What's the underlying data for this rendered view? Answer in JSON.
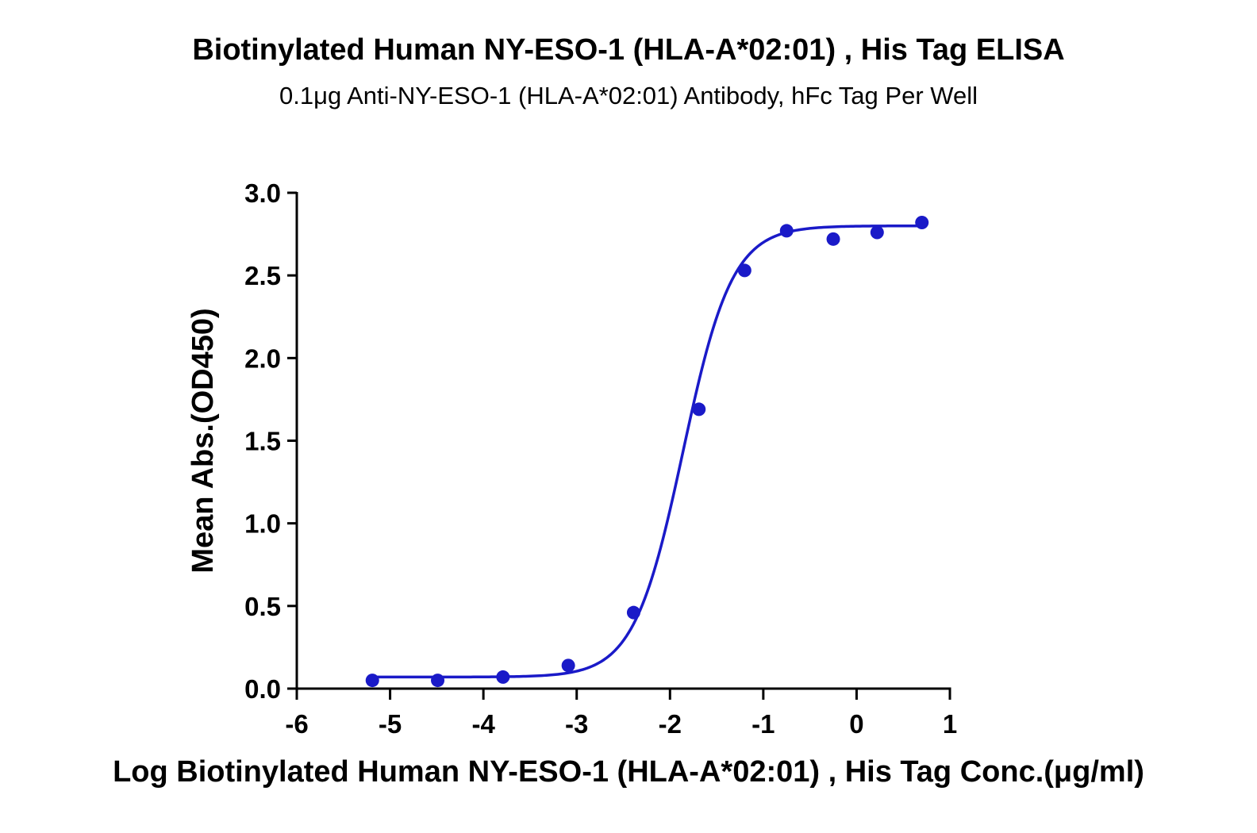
{
  "chart_data": {
    "type": "scatter",
    "title": "Biotinylated Human NY-ESO-1 (HLA-A*02:01) , His Tag ELISA",
    "subtitle": "0.1μg Anti-NY-ESO-1 (HLA-A*02:01) Antibody, hFc Tag Per Well",
    "xlabel": "Log Biotinylated Human NY-ESO-1 (HLA-A*02:01) , His Tag Conc.(μg/ml)",
    "ylabel": "Mean Abs.(OD450)",
    "xlim": [
      -6,
      1
    ],
    "ylim": [
      0,
      3
    ],
    "xticks": [
      "-6",
      "-5",
      "-4",
      "-3",
      "-2",
      "-1",
      "0",
      "1"
    ],
    "yticks": [
      "0.0",
      "0.5",
      "1.0",
      "1.5",
      "2.0",
      "2.5",
      "3.0"
    ],
    "grid": false,
    "series": [
      {
        "color": "#1a1ac8",
        "points": [
          {
            "x": -5.19,
            "y": 0.05
          },
          {
            "x": -4.49,
            "y": 0.05
          },
          {
            "x": -3.79,
            "y": 0.07
          },
          {
            "x": -3.09,
            "y": 0.14
          },
          {
            "x": -2.39,
            "y": 0.46
          },
          {
            "x": -1.69,
            "y": 1.69
          },
          {
            "x": -1.2,
            "y": 2.53
          },
          {
            "x": -0.75,
            "y": 2.77
          },
          {
            "x": -0.25,
            "y": 2.72
          },
          {
            "x": 0.22,
            "y": 2.76
          },
          {
            "x": 0.7,
            "y": 2.82
          }
        ],
        "fit": {
          "bottom": 0.07,
          "top": 2.8,
          "logEC50": -1.86,
          "hill": 1.65
        }
      }
    ]
  }
}
